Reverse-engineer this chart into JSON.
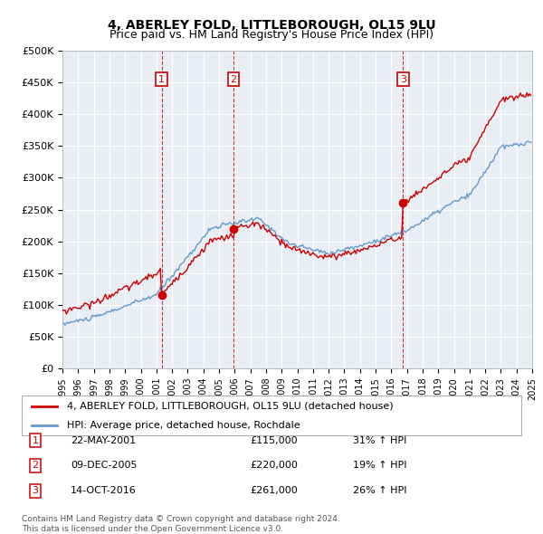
{
  "title": "4, ABERLEY FOLD, LITTLEBOROUGH, OL15 9LU",
  "subtitle": "Price paid vs. HM Land Registry's House Price Index (HPI)",
  "ylim": [
    0,
    500000
  ],
  "yticks": [
    0,
    50000,
    100000,
    150000,
    200000,
    250000,
    300000,
    350000,
    400000,
    450000,
    500000
  ],
  "ytick_labels": [
    "£0",
    "£50K",
    "£100K",
    "£150K",
    "£200K",
    "£250K",
    "£300K",
    "£350K",
    "£400K",
    "£450K",
    "£500K"
  ],
  "red_line_label": "4, ABERLEY FOLD, LITTLEBOROUGH, OL15 9LU (detached house)",
  "blue_line_label": "HPI: Average price, detached house, Rochdale",
  "sales": [
    {
      "num": 1,
      "date": "22-MAY-2001",
      "price": 115000,
      "pct": "31%",
      "dir": "↑"
    },
    {
      "num": 2,
      "date": "09-DEC-2005",
      "price": 220000,
      "pct": "19%",
      "dir": "↑"
    },
    {
      "num": 3,
      "date": "14-OCT-2016",
      "price": 261000,
      "pct": "26%",
      "dir": "↑"
    }
  ],
  "footer1": "Contains HM Land Registry data © Crown copyright and database right 2024.",
  "footer2": "This data is licensed under the Open Government Licence v3.0.",
  "background_color": "#ffffff",
  "chart_bg_color": "#e8eef4",
  "grid_color": "#ffffff",
  "red_color": "#cc0000",
  "blue_color": "#6699cc",
  "vline_color": "#cc0000",
  "marker_box_color": "#cc0000",
  "sale1_t": 2001.333,
  "sale2_t": 2005.917,
  "sale3_t": 2016.75,
  "sale1_price": 115000,
  "sale2_price": 220000,
  "sale3_price": 261000,
  "hpi_base_1995": 70000,
  "red_base_1995": 90000
}
